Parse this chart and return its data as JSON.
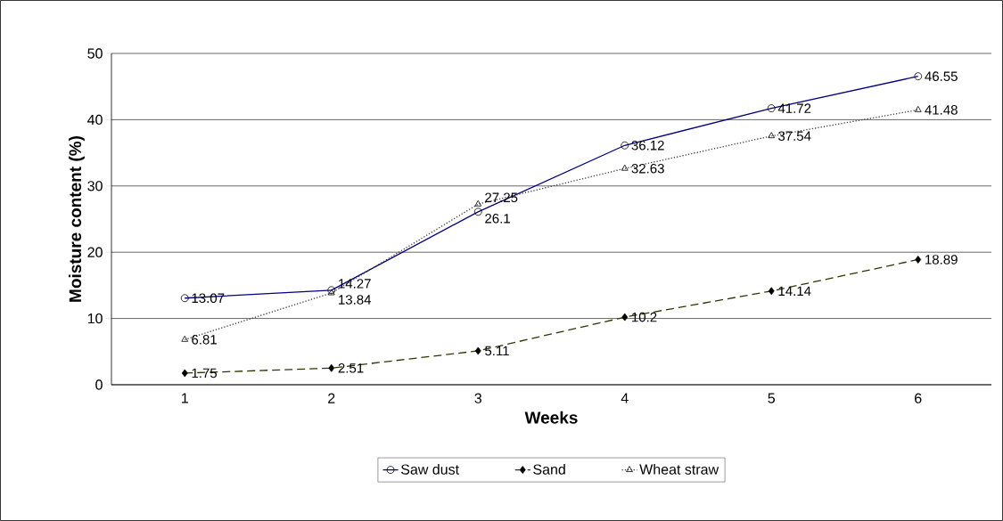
{
  "chart_data": {
    "type": "line",
    "xlabel": "Weeks",
    "ylabel": "Moisture content (%)",
    "categories": [
      "1",
      "2",
      "3",
      "4",
      "5",
      "6"
    ],
    "ylim": [
      0,
      50
    ],
    "yticks": [
      0,
      10,
      20,
      30,
      40,
      50
    ],
    "grid": "y",
    "legend": "bottom",
    "data_labels": true,
    "series": [
      {
        "name": "Saw dust",
        "color": "#000080",
        "marker": "circle",
        "line_style": "solid",
        "values": [
          13.07,
          14.27,
          26.1,
          36.12,
          41.72,
          46.55
        ]
      },
      {
        "name": "Sand",
        "color": "#333300",
        "marker": "diamond",
        "line_style": "dashed",
        "values": [
          1.75,
          2.51,
          5.11,
          10.2,
          14.14,
          18.89
        ]
      },
      {
        "name": "Wheat straw",
        "color": "#404040",
        "marker": "triangle",
        "line_style": "dotted",
        "values": [
          6.81,
          13.84,
          27.25,
          32.63,
          37.54,
          41.48
        ]
      }
    ]
  }
}
